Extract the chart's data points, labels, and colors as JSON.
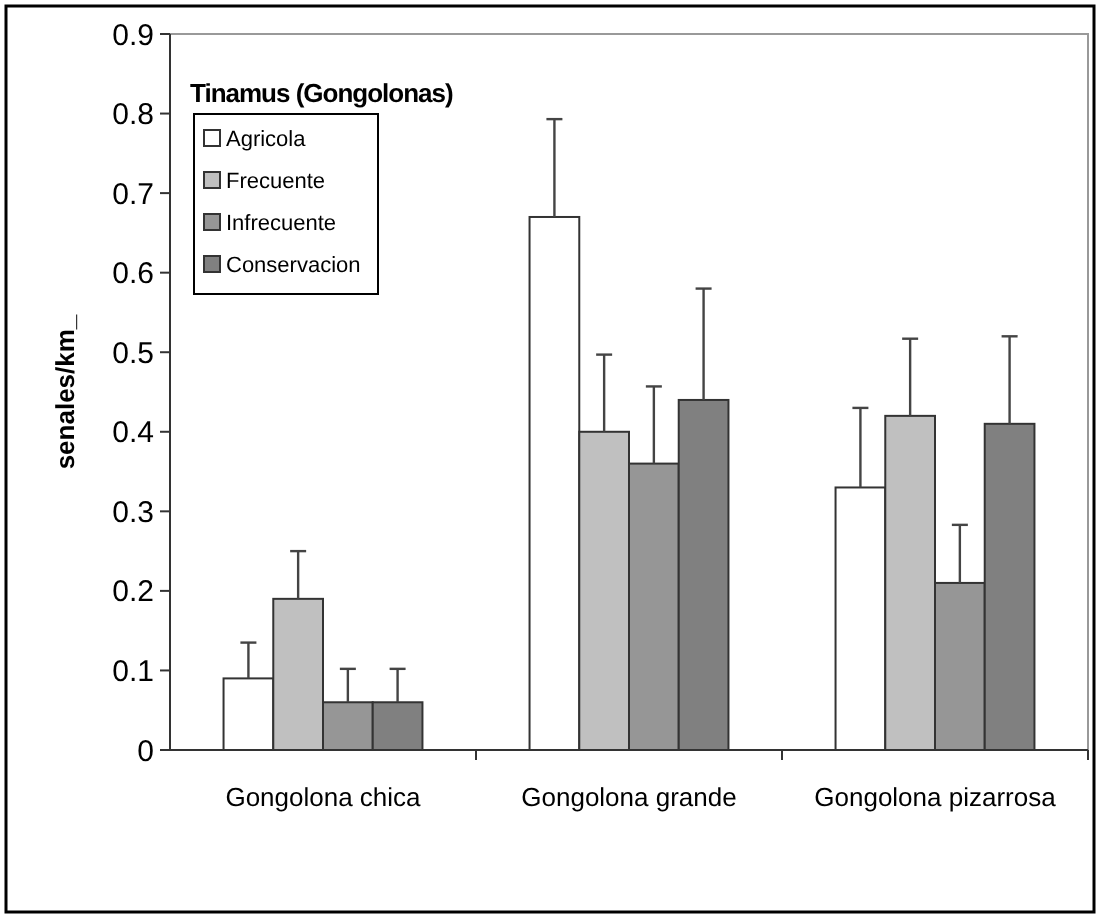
{
  "chart_data": {
    "type": "bar",
    "title": "Tinamus (Gongolonas)",
    "ylabel": "senales/km_",
    "categories": [
      "Gongolona chica",
      "Gongolona grande",
      "Gongolona pizarrosa"
    ],
    "series": [
      {
        "name": "Agricola",
        "color": "#ffffff",
        "values": [
          0.09,
          0.67,
          0.33
        ],
        "errors": [
          [
            0.09,
            0.135
          ],
          [
            0.67,
            0.793
          ],
          [
            0.33,
            0.43
          ]
        ]
      },
      {
        "name": "Frecuente",
        "color": "#c0c0c0",
        "values": [
          0.19,
          0.4,
          0.42
        ],
        "errors": [
          [
            0.19,
            0.25
          ],
          [
            0.4,
            0.497
          ],
          [
            0.42,
            0.517
          ]
        ]
      },
      {
        "name": "Infrecuente",
        "color": "#969696",
        "values": [
          0.06,
          0.36,
          0.21
        ],
        "errors": [
          [
            0.06,
            0.102
          ],
          [
            0.36,
            0.457
          ],
          [
            0.21,
            0.283
          ]
        ]
      },
      {
        "name": "Conservacion",
        "color": "#808080",
        "values": [
          0.06,
          0.44,
          0.41
        ],
        "errors": [
          [
            0.06,
            0.102
          ],
          [
            0.44,
            0.58
          ],
          [
            0.41,
            0.52
          ]
        ]
      }
    ],
    "ylim": [
      0,
      0.9
    ],
    "yticks": [
      0,
      0.1,
      0.2,
      0.3,
      0.4,
      0.5,
      0.6,
      0.7,
      0.8,
      0.9
    ],
    "grid": false,
    "legend": "top left"
  }
}
